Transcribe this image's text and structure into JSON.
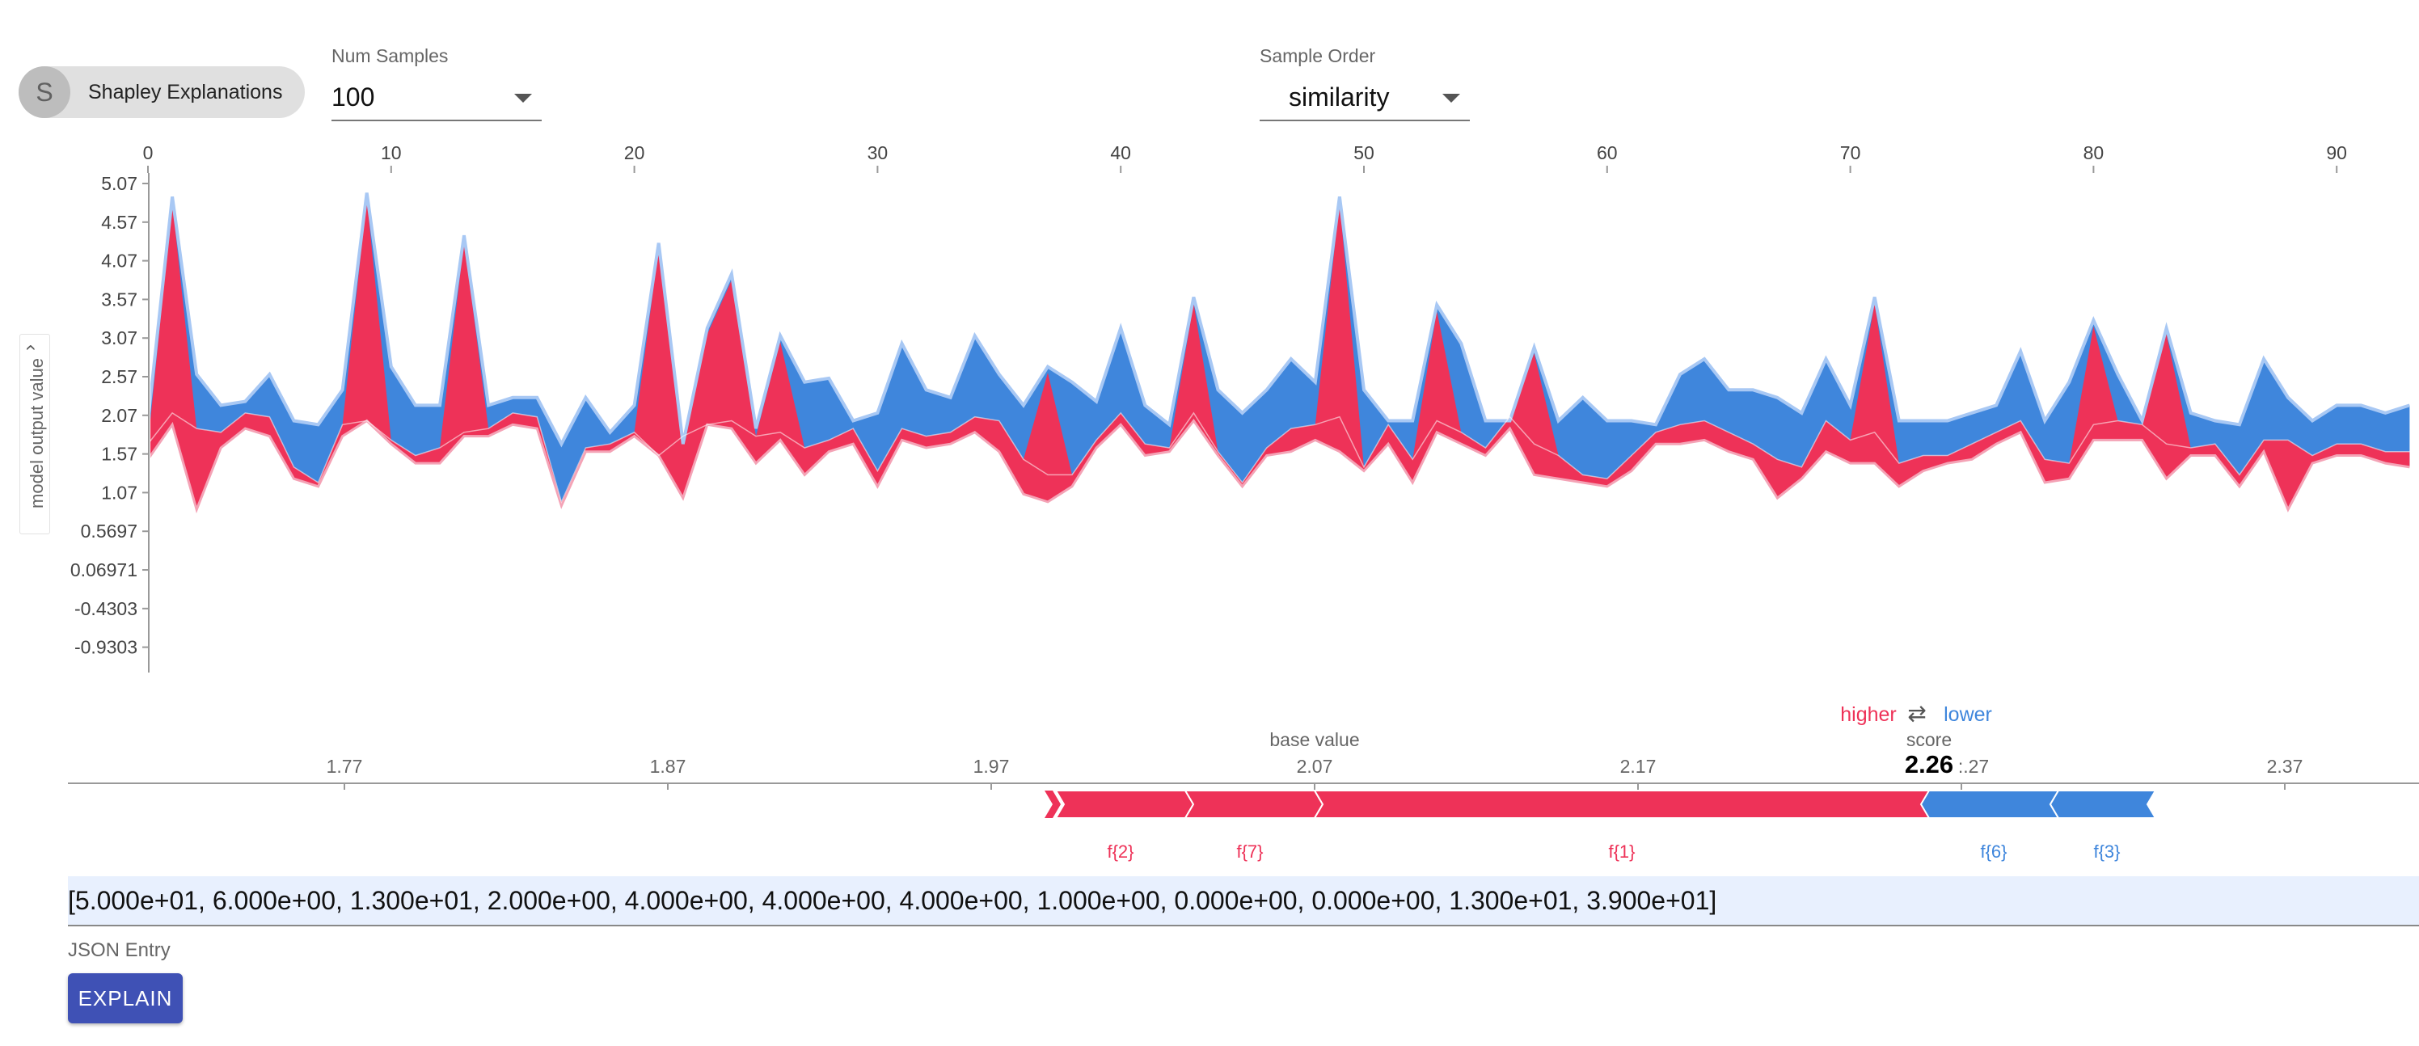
{
  "header": {
    "chip": {
      "avatar_letter": "S",
      "label": "Shapley Explanations"
    },
    "num_samples": {
      "caption": "Num Samples",
      "value": "100"
    },
    "sample_order": {
      "caption": "Sample Order",
      "value": "similarity"
    }
  },
  "stack_chart": {
    "y_axis_label": "model output value",
    "x_ticks": [
      "0",
      "10",
      "20",
      "30",
      "40",
      "50",
      "60",
      "70",
      "80",
      "90"
    ],
    "y_ticks": [
      "5.07",
      "4.57",
      "4.07",
      "3.57",
      "3.07",
      "2.57",
      "2.07",
      "1.57",
      "1.07",
      "0.5697",
      "0.06971",
      "-0.4303",
      "-0.9303"
    ]
  },
  "force_plot": {
    "legend_higher": "higher",
    "legend_arrow": "⇄",
    "legend_lower": "lower",
    "base_value_label": "base value",
    "score_label": "score",
    "score_value": "2.26",
    "axis_ticks": [
      "1.77",
      "1.87",
      "1.97",
      "2.07",
      "2.17",
      ":.27",
      "2.37"
    ],
    "feature_labels": [
      "f{2}",
      "f{7}",
      "f{1}",
      "f{6}",
      "f{3}"
    ]
  },
  "input": {
    "value": "[5.000e+01, 6.000e+00, 1.300e+01, 2.000e+00, 4.000e+00, 4.000e+00, 4.000e+00, 1.000e+00, 0.000e+00, 0.000e+00, 1.300e+01, 3.900e+01]",
    "caption": "JSON Entry"
  },
  "explain_button": {
    "label": "EXPLAIN"
  },
  "colors": {
    "positive": "#ee3258",
    "negative": "#3f86dc",
    "button": "#3f51b5"
  },
  "chart_data": {
    "type": "area",
    "title": "",
    "xlabel": "",
    "ylabel": "model output value",
    "xlim": [
      0,
      93
    ],
    "ylim": [
      -0.9303,
      5.07
    ],
    "x": [
      0,
      1,
      2,
      3,
      4,
      5,
      6,
      7,
      8,
      9,
      10,
      11,
      12,
      13,
      14,
      15,
      16,
      17,
      18,
      19,
      20,
      21,
      22,
      23,
      24,
      25,
      26,
      27,
      28,
      29,
      30,
      31,
      32,
      33,
      34,
      35,
      36,
      37,
      38,
      39,
      40,
      41,
      42,
      43,
      44,
      45,
      46,
      47,
      48,
      49,
      50,
      51,
      52,
      53,
      54,
      55,
      56,
      57,
      58,
      59,
      60,
      61,
      62,
      63,
      64,
      65,
      66,
      67,
      68,
      69,
      70,
      71,
      72,
      73,
      74,
      75,
      76,
      77,
      78,
      79,
      80,
      81,
      82,
      83,
      84,
      85,
      86,
      87,
      88,
      89,
      90,
      91,
      92,
      93
    ],
    "series": [
      {
        "name": "upper",
        "values": [
          2.0,
          4.9,
          2.6,
          2.2,
          2.25,
          2.6,
          2.0,
          1.95,
          2.4,
          4.95,
          2.7,
          2.2,
          2.2,
          4.4,
          2.2,
          2.3,
          2.3,
          1.7,
          2.3,
          1.85,
          2.2,
          4.3,
          1.7,
          3.2,
          3.9,
          1.9,
          3.1,
          2.5,
          2.55,
          2.0,
          2.1,
          3.0,
          2.4,
          2.3,
          3.1,
          2.6,
          2.2,
          2.7,
          2.5,
          2.25,
          3.2,
          2.2,
          1.95,
          3.6,
          2.4,
          2.1,
          2.4,
          2.8,
          2.5,
          4.9,
          2.4,
          2.0,
          2.0,
          3.5,
          3.0,
          2.0,
          2.0,
          2.95,
          2.0,
          2.3,
          2.0,
          2.0,
          1.95,
          2.6,
          2.8,
          2.4,
          2.4,
          2.3,
          2.1,
          2.8,
          2.2,
          3.6,
          2.0,
          2.0,
          2.0,
          2.1,
          2.2,
          2.9,
          2.0,
          2.5,
          3.3,
          2.6,
          2.0,
          3.2,
          2.1,
          2.0,
          1.95,
          2.8,
          2.3,
          2.0,
          2.2,
          2.2,
          2.1,
          2.2
        ]
      },
      {
        "name": "boundary",
        "values": [
          1.7,
          2.1,
          1.9,
          1.85,
          2.1,
          2.05,
          1.4,
          1.2,
          1.95,
          2.0,
          1.75,
          1.55,
          1.65,
          1.85,
          1.9,
          2.1,
          2.05,
          0.95,
          1.65,
          1.7,
          1.85,
          1.55,
          1.8,
          1.95,
          2.0,
          1.8,
          1.85,
          1.65,
          1.75,
          1.9,
          1.35,
          1.9,
          1.8,
          1.85,
          2.05,
          2.0,
          1.5,
          1.3,
          1.3,
          1.75,
          2.1,
          1.7,
          1.65,
          2.1,
          1.6,
          1.2,
          1.65,
          1.9,
          1.95,
          2.05,
          1.4,
          1.95,
          1.5,
          2.0,
          1.85,
          1.65,
          2.05,
          1.7,
          1.55,
          1.3,
          1.25,
          1.55,
          1.85,
          1.95,
          2.0,
          1.85,
          1.7,
          1.5,
          1.4,
          2.0,
          1.75,
          1.85,
          1.45,
          1.55,
          1.55,
          1.7,
          1.85,
          2.0,
          1.5,
          1.45,
          1.95,
          2.0,
          1.95,
          1.7,
          1.65,
          1.7,
          1.3,
          1.75,
          1.75,
          1.55,
          1.7,
          1.7,
          1.6,
          1.6
        ]
      },
      {
        "name": "lower",
        "values": [
          1.5,
          1.95,
          0.85,
          1.65,
          1.9,
          1.8,
          1.25,
          1.15,
          1.8,
          2.0,
          1.7,
          1.45,
          1.45,
          1.8,
          1.8,
          1.95,
          1.9,
          0.9,
          1.6,
          1.6,
          1.8,
          1.55,
          1.0,
          1.95,
          1.9,
          1.45,
          1.75,
          1.3,
          1.6,
          1.7,
          1.15,
          1.75,
          1.65,
          1.7,
          1.85,
          1.6,
          1.05,
          0.95,
          1.15,
          1.65,
          1.95,
          1.55,
          1.6,
          2.0,
          1.55,
          1.15,
          1.55,
          1.6,
          1.75,
          1.6,
          1.35,
          1.7,
          1.2,
          1.85,
          1.7,
          1.55,
          1.9,
          1.3,
          1.25,
          1.2,
          1.15,
          1.35,
          1.7,
          1.7,
          1.75,
          1.6,
          1.5,
          1.0,
          1.25,
          1.6,
          1.45,
          1.45,
          1.15,
          1.35,
          1.45,
          1.5,
          1.7,
          1.85,
          1.2,
          1.25,
          1.75,
          1.75,
          1.75,
          1.25,
          1.55,
          1.55,
          1.15,
          1.6,
          0.85,
          1.45,
          1.55,
          1.55,
          1.45,
          1.4
        ]
      }
    ],
    "force": {
      "base_value": 2.07,
      "output_value": 2.26,
      "axis_range": [
        1.69,
        2.47
      ],
      "segments": [
        {
          "feature": "f{2}",
          "from": 1.99,
          "to": 2.03,
          "sign": "positive"
        },
        {
          "feature": "f{7}",
          "from": 2.03,
          "to": 2.07,
          "sign": "positive"
        },
        {
          "feature": "f{1}",
          "from": 2.07,
          "to": 2.26,
          "sign": "positive"
        },
        {
          "feature": "f{6}",
          "from": 2.26,
          "to": 2.3,
          "sign": "negative"
        },
        {
          "feature": "f{3}",
          "from": 2.3,
          "to": 2.33,
          "sign": "negative"
        }
      ]
    }
  }
}
